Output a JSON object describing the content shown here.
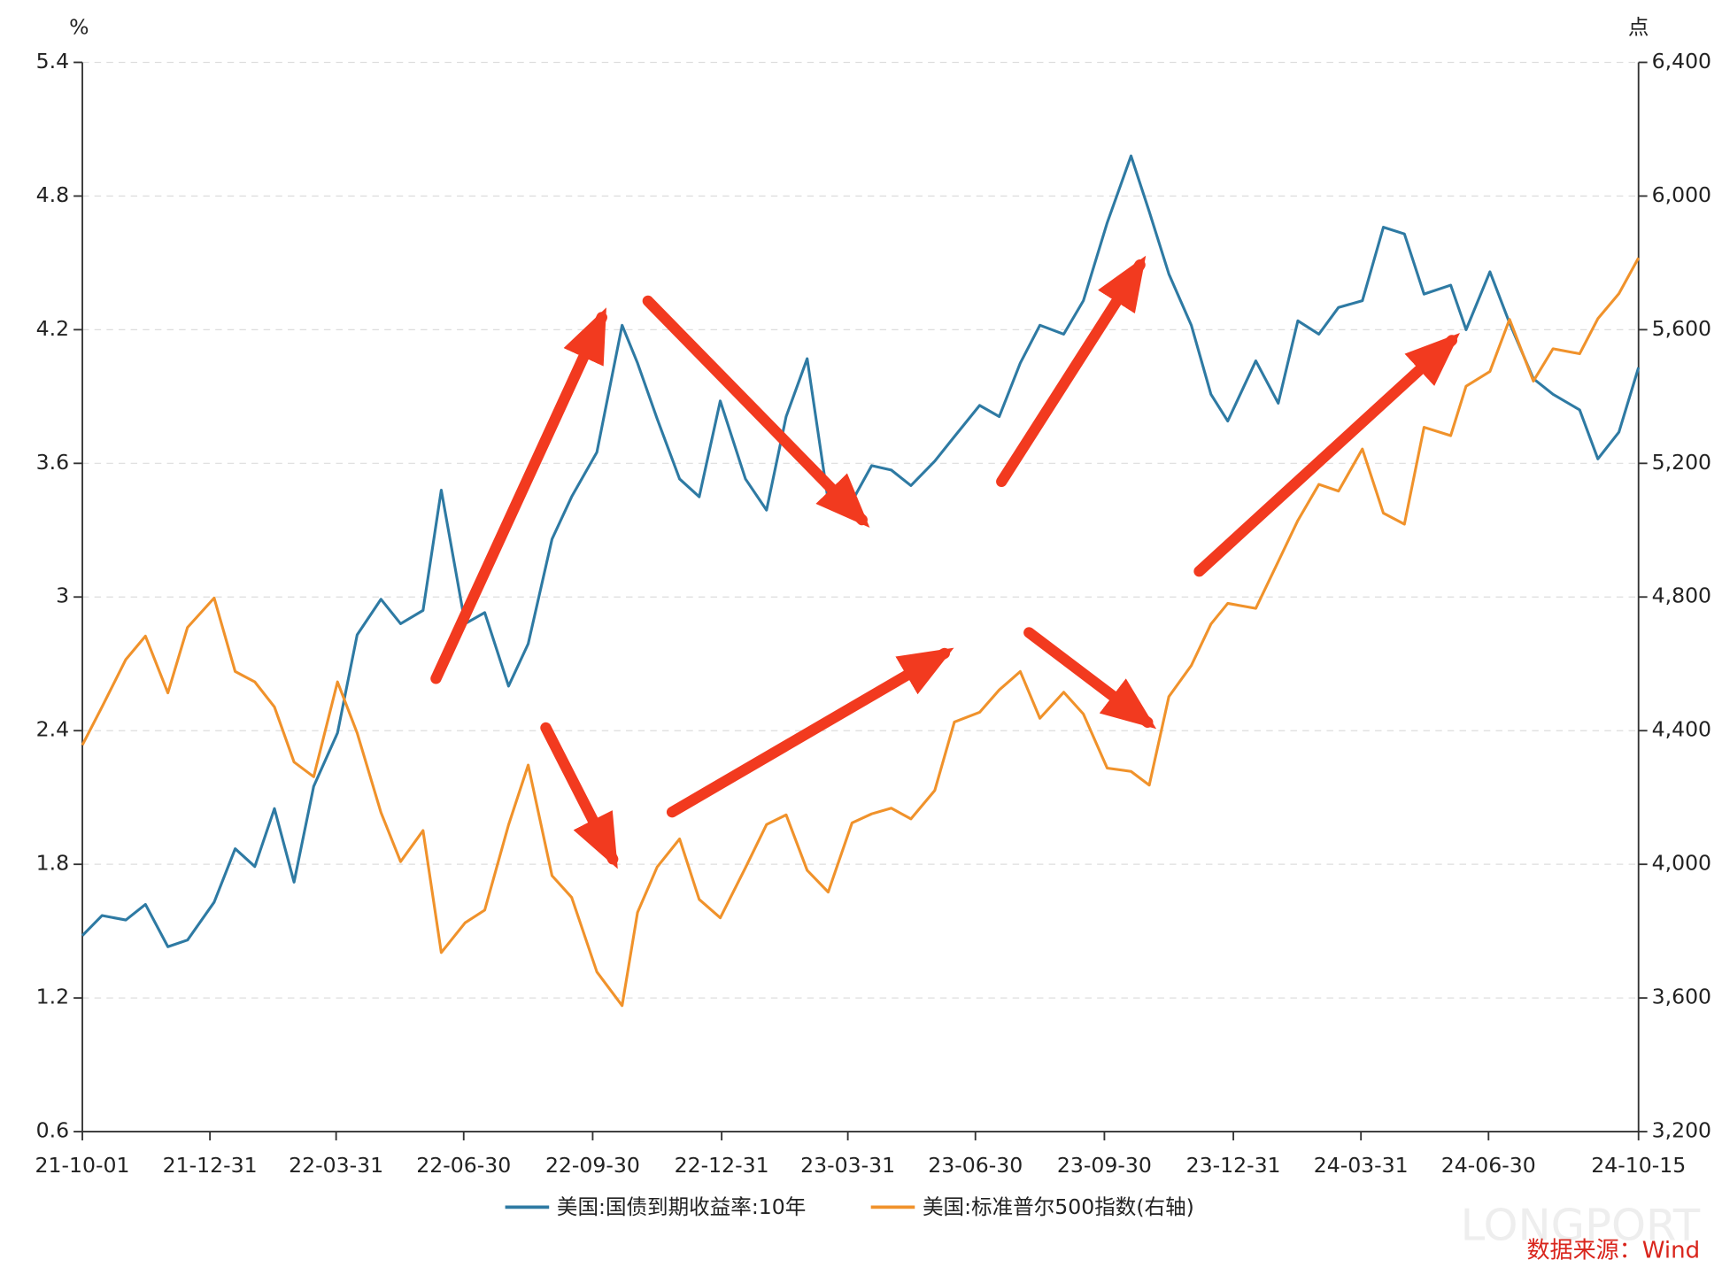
{
  "chart_data": {
    "type": "line",
    "y_label": "%",
    "y2_label": "点",
    "source": "数据来源：Wind",
    "watermark": "LONGPORT",
    "x": [
      "21-10-01",
      "21-10-15",
      "21-11-01",
      "21-11-15",
      "21-12-01",
      "21-12-15",
      "22-01-03",
      "22-01-18",
      "22-02-01",
      "22-02-15",
      "22-03-01",
      "22-03-15",
      "22-04-01",
      "22-04-15",
      "22-05-02",
      "22-05-16",
      "22-06-01",
      "22-06-14",
      "22-07-01",
      "22-07-15",
      "22-08-01",
      "22-08-15",
      "22-09-01",
      "22-09-15",
      "22-10-03",
      "22-10-21",
      "22-11-01",
      "22-11-15",
      "22-12-01",
      "22-12-15",
      "22-12-30",
      "23-01-17",
      "23-02-01",
      "23-02-15",
      "23-03-02",
      "23-03-17",
      "23-04-03",
      "23-04-17",
      "23-05-01",
      "23-05-15",
      "23-06-01",
      "23-06-15",
      "23-07-03",
      "23-07-17",
      "23-08-01",
      "23-08-15",
      "23-09-01",
      "23-09-15",
      "23-10-02",
      "23-10-19",
      "23-11-01",
      "23-11-15",
      "23-12-01",
      "23-12-15",
      "23-12-27",
      "24-01-16",
      "24-02-01",
      "24-02-15",
      "24-03-01",
      "24-03-15",
      "24-04-01",
      "24-04-16",
      "24-05-01",
      "24-05-15",
      "24-06-03",
      "24-06-14",
      "24-07-01",
      "24-07-15",
      "24-08-01",
      "24-08-15",
      "24-09-03",
      "24-09-16",
      "24-10-01",
      "24-10-15"
    ],
    "series": [
      {
        "name": "美国:国债到期收益率:10年",
        "color": "#2e7aa3",
        "axis": "y",
        "values": [
          1.48,
          1.57,
          1.55,
          1.62,
          1.43,
          1.46,
          1.63,
          1.87,
          1.79,
          2.05,
          1.72,
          2.15,
          2.39,
          2.83,
          2.99,
          2.88,
          2.94,
          3.48,
          2.88,
          2.93,
          2.6,
          2.79,
          3.26,
          3.45,
          3.65,
          4.22,
          4.05,
          3.8,
          3.53,
          3.45,
          3.88,
          3.53,
          3.39,
          3.81,
          4.07,
          3.43,
          3.43,
          3.59,
          3.57,
          3.5,
          3.61,
          3.72,
          3.86,
          3.81,
          4.05,
          4.22,
          4.18,
          4.33,
          4.68,
          4.98,
          4.73,
          4.45,
          4.22,
          3.91,
          3.79,
          4.06,
          3.87,
          4.24,
          4.18,
          4.3,
          4.33,
          4.66,
          4.63,
          4.36,
          4.4,
          4.2,
          4.46,
          4.23,
          3.98,
          3.91,
          3.84,
          3.62,
          3.74,
          4.03
        ]
      },
      {
        "name": "美国:标准普尔500指数(右轴)",
        "color": "#f0922b",
        "axis": "y2",
        "values": [
          4357,
          4471,
          4613,
          4683,
          4513,
          4709,
          4797,
          4577,
          4546,
          4471,
          4306,
          4262,
          4546,
          4393,
          4155,
          4008,
          4101,
          3736,
          3825,
          3863,
          4118,
          4297,
          3966,
          3901,
          3678,
          3577,
          3856,
          3992,
          4076,
          3895,
          3840,
          3990,
          4119,
          4148,
          3982,
          3917,
          4124,
          4151,
          4168,
          4136,
          4221,
          4426,
          4455,
          4522,
          4577,
          4437,
          4515,
          4450,
          4288,
          4278,
          4237,
          4502,
          4595,
          4719,
          4781,
          4766,
          4906,
          5029,
          5137,
          5117,
          5243,
          5051,
          5018,
          5308,
          5283,
          5431,
          5475,
          5631,
          5446,
          5543,
          5528,
          5633,
          5708,
          5815
        ]
      }
    ],
    "xlim": [
      "21-10-01",
      "24-10-15"
    ],
    "xticks": [
      "21-10-01",
      "21-12-31",
      "22-03-31",
      "22-06-30",
      "22-09-30",
      "22-12-31",
      "23-03-31",
      "23-06-30",
      "23-09-30",
      "23-12-31",
      "24-03-31",
      "24-06-30",
      "24-10-15"
    ],
    "ylim": [
      0.6,
      5.4
    ],
    "yticks": [
      0.6,
      1.2,
      1.8,
      2.4,
      3,
      3.6,
      4.2,
      4.8,
      5.4
    ],
    "y2lim": [
      3200,
      6400
    ],
    "y2ticks": [
      {
        "value": 3200,
        "label": "3,200"
      },
      {
        "value": 3600,
        "label": "3,600"
      },
      {
        "value": 4000,
        "label": "4,000"
      },
      {
        "value": 4400,
        "label": "4,400"
      },
      {
        "value": 4800,
        "label": "4,800"
      },
      {
        "value": 5200,
        "label": "5,200"
      },
      {
        "value": 5600,
        "label": "5,600"
      },
      {
        "value": 6000,
        "label": "6,000"
      },
      {
        "value": 6400,
        "label": "6,400"
      }
    ],
    "grid": true
  }
}
